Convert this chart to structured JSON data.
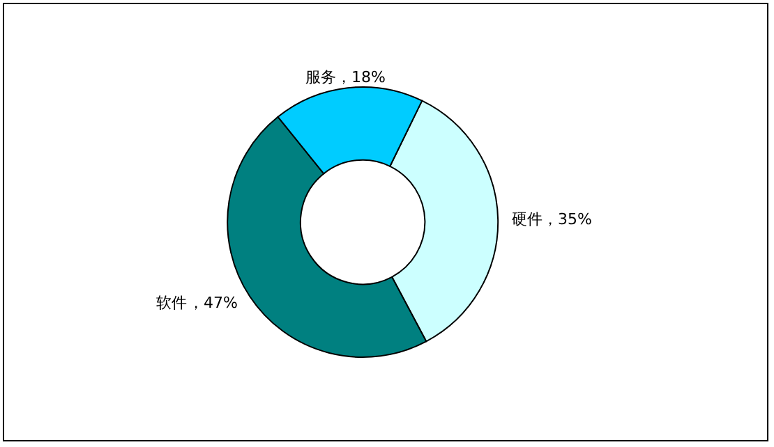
{
  "chart_data": {
    "type": "donut",
    "categories": [
      "硬件",
      "软件",
      "服务"
    ],
    "values": [
      35,
      47,
      18
    ],
    "value_labels": [
      "，35%",
      "，47%",
      "，18%"
    ],
    "colors": [
      "#ccffff",
      "#008080",
      "#00ccff"
    ],
    "legend": false
  }
}
